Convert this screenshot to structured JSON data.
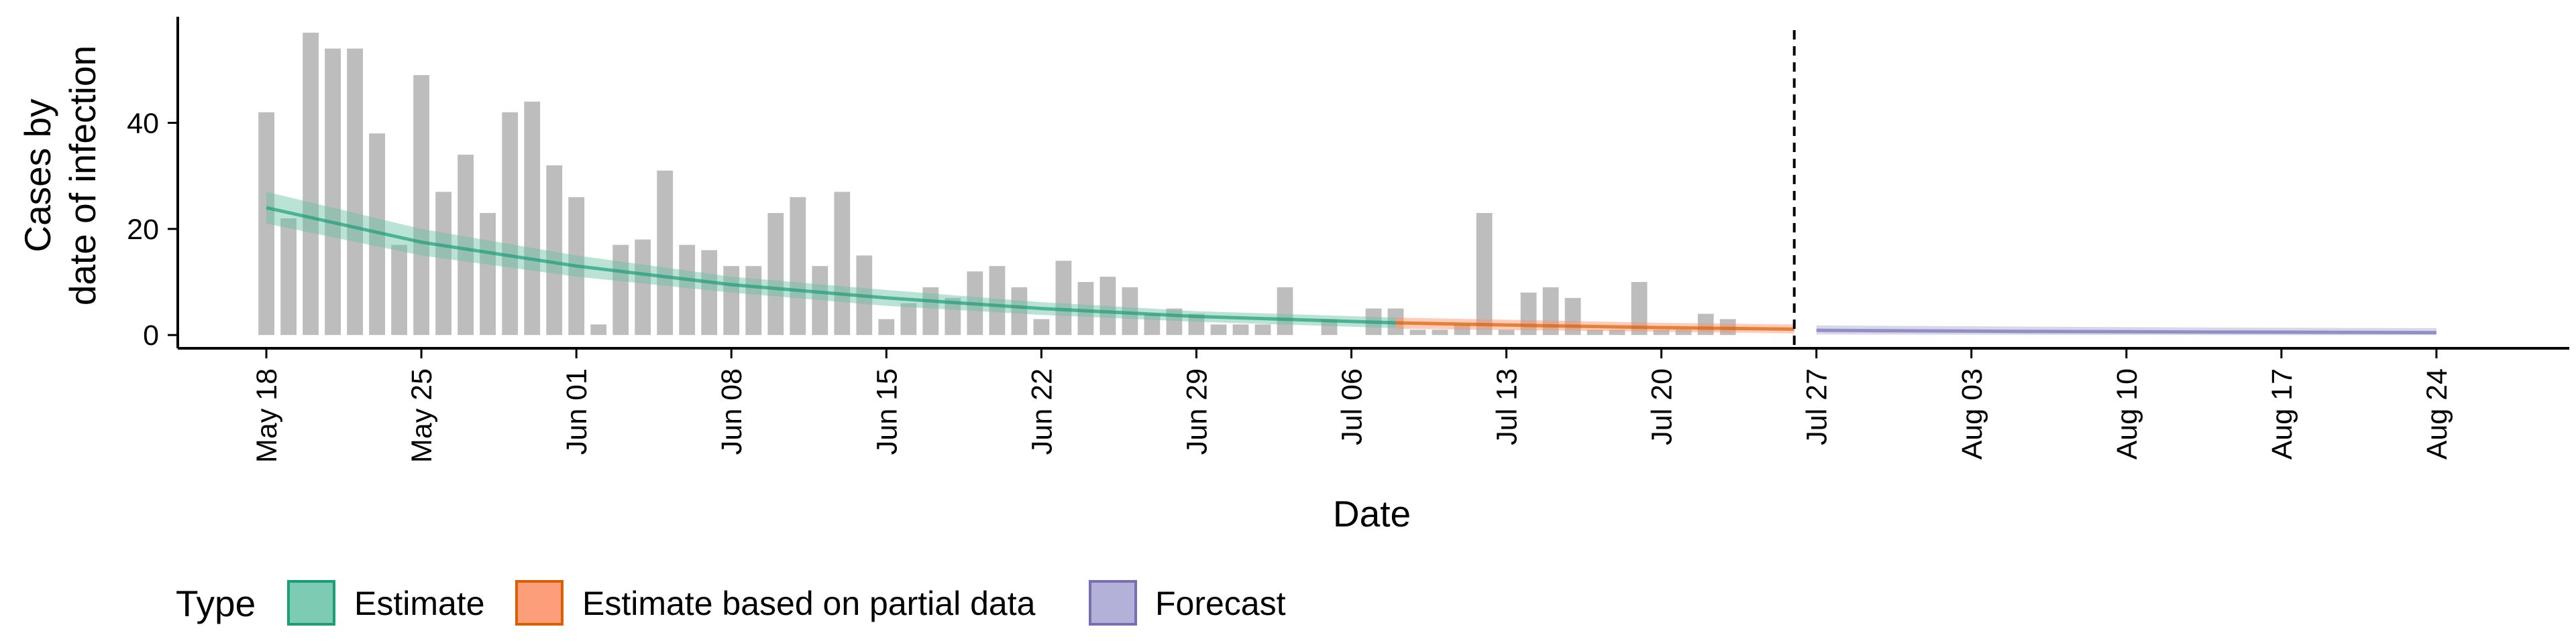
{
  "chart_data": {
    "type": "bar",
    "xlabel": "Date",
    "ylabel_lines": [
      "Cases by",
      "date of infection"
    ],
    "yticks": [
      0,
      20,
      40
    ],
    "ylim": [
      -2.5,
      60
    ],
    "x_start": "2020-05-18",
    "xlim_dates": [
      "2020-05-14",
      "2020-08-30"
    ],
    "xtick_labels": [
      "May 18",
      "May 25",
      "Jun 01",
      "Jun 08",
      "Jun 15",
      "Jun 22",
      "Jun 29",
      "Jul 06",
      "Jul 13",
      "Jul 20",
      "Jul 27",
      "Aug 03",
      "Aug 10",
      "Aug 17",
      "Aug 24"
    ],
    "xtick_dates": [
      "2020-05-18",
      "2020-05-25",
      "2020-06-01",
      "2020-06-08",
      "2020-06-15",
      "2020-06-22",
      "2020-06-29",
      "2020-07-06",
      "2020-07-13",
      "2020-07-20",
      "2020-07-27",
      "2020-08-03",
      "2020-08-10",
      "2020-08-17",
      "2020-08-24"
    ],
    "cutoff_date": "2020-07-26",
    "bar_color": "#bdbdbd",
    "cases": [
      42,
      22,
      57,
      54,
      54,
      38,
      17,
      49,
      27,
      34,
      23,
      42,
      44,
      32,
      26,
      2,
      17,
      18,
      31,
      17,
      16,
      13,
      13,
      23,
      26,
      13,
      27,
      15,
      3,
      6,
      9,
      7,
      12,
      13,
      9,
      3,
      14,
      10,
      11,
      9,
      4,
      5,
      4,
      2,
      2,
      2,
      9,
      0,
      3,
      0,
      5,
      5,
      1,
      1,
      2,
      23,
      1,
      8,
      9,
      7,
      1,
      1,
      10,
      1,
      1,
      4,
      3
    ],
    "series": [
      {
        "name": "Estimate",
        "color": "#1b9e77",
        "fill": "#66c2a5",
        "dates": [
          "2020-05-18",
          "2020-05-25",
          "2020-06-01",
          "2020-06-08",
          "2020-06-15",
          "2020-06-22",
          "2020-06-29",
          "2020-07-08"
        ],
        "median": [
          24,
          17.5,
          13,
          9.5,
          7,
          5,
          3.5,
          2.3
        ],
        "lower_90": [
          21,
          15,
          11,
          8,
          5.5,
          3.8,
          2.5,
          1.3
        ],
        "upper_90": [
          27,
          20,
          15,
          11,
          8.5,
          6.2,
          4.5,
          3.3
        ]
      },
      {
        "name": "Estimate based on partial data",
        "color": "#d95f02",
        "fill": "#fc8d62",
        "dates": [
          "2020-07-08",
          "2020-07-14",
          "2020-07-20",
          "2020-07-26"
        ],
        "median": [
          2.3,
          1.8,
          1.4,
          1.1
        ],
        "lower_90": [
          1.2,
          0.9,
          0.6,
          0.3
        ],
        "upper_90": [
          3.3,
          2.8,
          2.3,
          2.0
        ]
      },
      {
        "name": "Forecast",
        "color": "#7570b3",
        "fill": "#a6a3d1",
        "dates": [
          "2020-07-27",
          "2020-08-05",
          "2020-08-15",
          "2020-08-24"
        ],
        "median": [
          0.9,
          0.7,
          0.55,
          0.45
        ],
        "lower_90": [
          0.1,
          0.05,
          0.0,
          0.0
        ],
        "upper_90": [
          1.8,
          1.6,
          1.4,
          1.3
        ]
      }
    ],
    "legend": {
      "title": "Type",
      "position": "bottom-left",
      "entries": [
        "Estimate",
        "Estimate based on partial data",
        "Forecast"
      ]
    }
  }
}
